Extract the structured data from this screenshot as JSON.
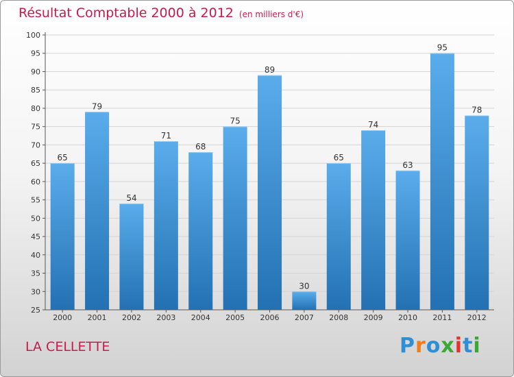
{
  "header": {
    "title": "Résultat Comptable 2000 à 2012",
    "subtitle": "(en milliers d'€)"
  },
  "footer": {
    "commune": "LA CELLETTE",
    "logo_letters": [
      "P",
      "r",
      "o",
      "x",
      "i",
      "t",
      "i"
    ],
    "logo_colors": [
      "#2e8fd6",
      "#f07c1a",
      "#2e8fd6",
      "#39a935",
      "#e6322f",
      "#2e8fd6",
      "#39a935"
    ]
  },
  "colors": {
    "accent": "#c8194a",
    "bar_top": "#5aaceb",
    "bar_bottom": "#2371b2"
  },
  "chart_data": {
    "type": "bar",
    "title": "Résultat Comptable 2000 à 2012",
    "subtitle": "(en milliers d'€)",
    "categories": [
      "2000",
      "2001",
      "2002",
      "2003",
      "2004",
      "2005",
      "2006",
      "2007",
      "2008",
      "2009",
      "2010",
      "2011",
      "2012"
    ],
    "values": [
      65,
      79,
      54,
      71,
      68,
      75,
      89,
      30,
      65,
      74,
      63,
      95,
      78
    ],
    "ylim": [
      25,
      100
    ],
    "yticks": [
      25,
      30,
      35,
      40,
      45,
      50,
      55,
      60,
      65,
      70,
      75,
      80,
      85,
      90,
      95,
      100
    ],
    "grid": true
  }
}
